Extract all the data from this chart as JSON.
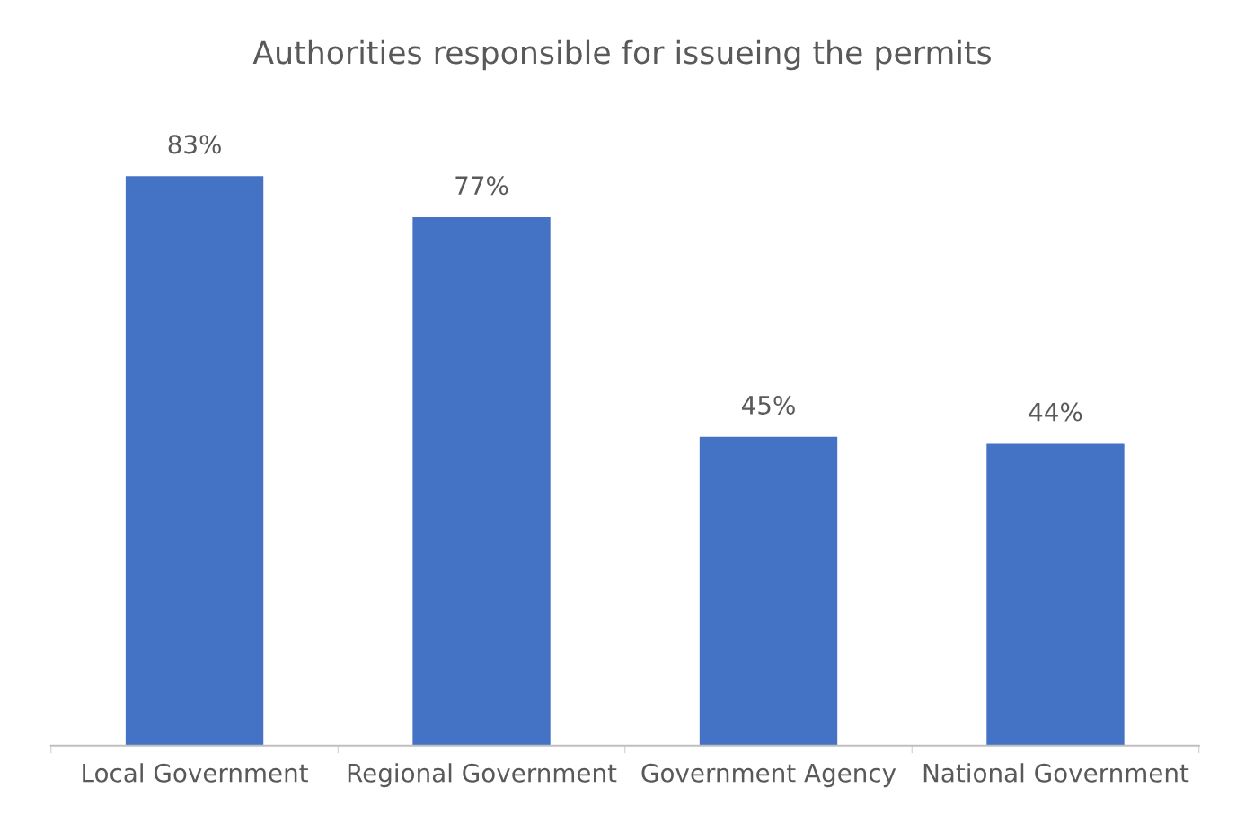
{
  "chart_data": {
    "type": "bar",
    "title": "Authorities responsible for issueing the permits",
    "categories": [
      "Local Government",
      "Regional Government",
      "Government Agency",
      "National Government"
    ],
    "values": [
      83,
      77,
      45,
      44
    ],
    "value_labels": [
      "83%",
      "77%",
      "45%",
      "44%"
    ],
    "color": "#4472c4"
  }
}
